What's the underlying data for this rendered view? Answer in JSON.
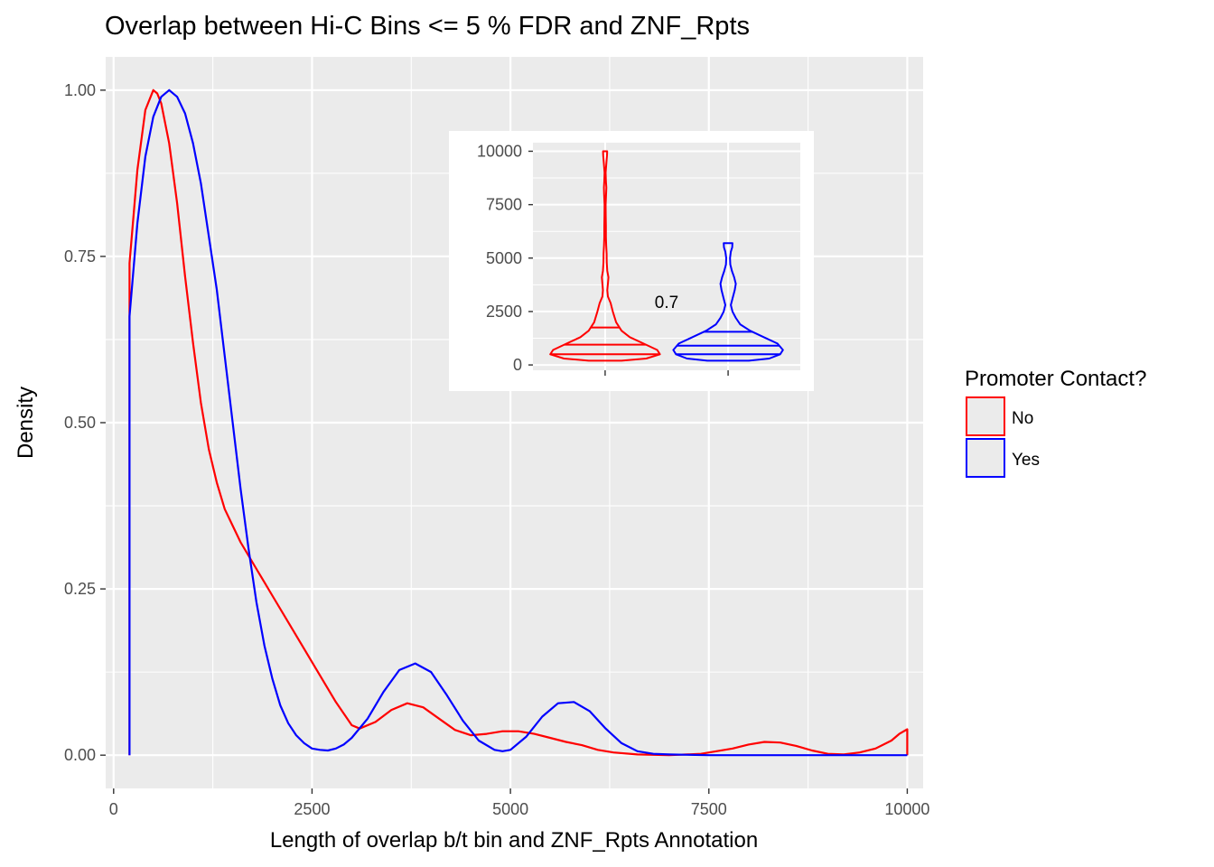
{
  "chart_data": [
    {
      "type": "area",
      "title": "Overlap between Hi-C Bins <= 5 % FDR and ZNF_Rpts",
      "xlabel": "Length of overlap b/t bin and ZNF_Rpts Annotation",
      "ylabel": "Density",
      "xlim": [
        -100,
        10200
      ],
      "ylim": [
        -0.05,
        1.05
      ],
      "xticks": [
        0,
        2500,
        5000,
        7500,
        10000
      ],
      "xtick_labels": [
        "0",
        "2500",
        "5000",
        "7500",
        "10000"
      ],
      "yticks": [
        0,
        0.25,
        0.5,
        0.75,
        1.0
      ],
      "ytick_labels": [
        "0.00",
        "0.25",
        "0.50",
        "0.75",
        "1.00"
      ],
      "grid": true,
      "legend": {
        "title": "Promoter Contact?",
        "position": "right",
        "entries": [
          {
            "label": "No",
            "color": "#ff0000"
          },
          {
            "label": "Yes",
            "color": "#0000ff"
          }
        ]
      },
      "series": [
        {
          "name": "No",
          "color": "#ff0000",
          "x": [
            200,
            200,
            300,
            400,
            500,
            550,
            600,
            700,
            800,
            900,
            1000,
            1100,
            1200,
            1300,
            1400,
            1500,
            1600,
            1700,
            1800,
            1900,
            2000,
            2200,
            2400,
            2600,
            2800,
            3000,
            3100,
            3300,
            3500,
            3700,
            3900,
            4100,
            4300,
            4500,
            4700,
            4900,
            5100,
            5300,
            5500,
            5700,
            5900,
            6100,
            6300,
            6600,
            7000,
            7400,
            7800,
            8000,
            8200,
            8400,
            8600,
            8800,
            9000,
            9200,
            9400,
            9600,
            9800,
            9900,
            10000,
            10000
          ],
          "y": [
            0,
            0.74,
            0.88,
            0.97,
            1.0,
            0.995,
            0.98,
            0.92,
            0.83,
            0.72,
            0.62,
            0.53,
            0.46,
            0.41,
            0.37,
            0.345,
            0.32,
            0.3,
            0.28,
            0.26,
            0.24,
            0.2,
            0.16,
            0.12,
            0.08,
            0.045,
            0.04,
            0.05,
            0.068,
            0.078,
            0.072,
            0.055,
            0.038,
            0.03,
            0.032,
            0.036,
            0.036,
            0.032,
            0.026,
            0.02,
            0.015,
            0.008,
            0.004,
            0.001,
            0.0,
            0.002,
            0.01,
            0.016,
            0.02,
            0.019,
            0.014,
            0.007,
            0.002,
            0.001,
            0.004,
            0.01,
            0.022,
            0.032,
            0.039,
            0
          ]
        },
        {
          "name": "Yes",
          "color": "#0000ff",
          "x": [
            200,
            200,
            300,
            400,
            500,
            600,
            700,
            800,
            900,
            1000,
            1100,
            1200,
            1300,
            1400,
            1500,
            1600,
            1700,
            1800,
            1900,
            2000,
            2100,
            2200,
            2300,
            2400,
            2500,
            2600,
            2700,
            2800,
            2900,
            3000,
            3200,
            3400,
            3600,
            3800,
            4000,
            4200,
            4400,
            4600,
            4800,
            4900,
            5000,
            5200,
            5400,
            5600,
            5800,
            6000,
            6200,
            6400,
            6600,
            6800,
            7000,
            7500,
            8000,
            9000,
            10000,
            10000
          ],
          "y": [
            0,
            0.66,
            0.8,
            0.9,
            0.96,
            0.99,
            1.0,
            0.99,
            0.965,
            0.92,
            0.86,
            0.78,
            0.7,
            0.6,
            0.5,
            0.4,
            0.31,
            0.23,
            0.165,
            0.115,
            0.075,
            0.048,
            0.03,
            0.018,
            0.01,
            0.008,
            0.007,
            0.01,
            0.016,
            0.026,
            0.055,
            0.095,
            0.128,
            0.138,
            0.125,
            0.09,
            0.052,
            0.022,
            0.008,
            0.006,
            0.008,
            0.028,
            0.058,
            0.078,
            0.08,
            0.066,
            0.04,
            0.018,
            0.006,
            0.002,
            0.001,
            0.0,
            0.0,
            0.0,
            0.0,
            0
          ]
        }
      ]
    },
    {
      "type": "violin",
      "ylim": [
        -250,
        10400
      ],
      "yticks": [
        0,
        2500,
        5000,
        7500,
        10000
      ],
      "ytick_labels": [
        "0",
        "2500",
        "5000",
        "7500",
        "10000"
      ],
      "annotation": "0.7",
      "groups": [
        {
          "name": "No",
          "color": "#ff0000",
          "quantiles": [
            500,
            950,
            1750
          ],
          "profile": [
            [
              200,
              0.3
            ],
            [
              300,
              0.75
            ],
            [
              500,
              1.0
            ],
            [
              700,
              0.95
            ],
            [
              1000,
              0.7
            ],
            [
              1300,
              0.45
            ],
            [
              1600,
              0.3
            ],
            [
              2000,
              0.2
            ],
            [
              2500,
              0.14
            ],
            [
              2900,
              0.1
            ],
            [
              3200,
              0.05
            ],
            [
              3500,
              0.04
            ],
            [
              3800,
              0.05
            ],
            [
              4100,
              0.06
            ],
            [
              4400,
              0.04
            ],
            [
              4800,
              0.03
            ],
            [
              5200,
              0.028
            ],
            [
              5600,
              0.02
            ],
            [
              6000,
              0.015
            ],
            [
              6500,
              0.015
            ],
            [
              7000,
              0.012
            ],
            [
              7500,
              0.01
            ],
            [
              8000,
              0.018
            ],
            [
              8300,
              0.022
            ],
            [
              8600,
              0.015
            ],
            [
              9000,
              0.01
            ],
            [
              9500,
              0.025
            ],
            [
              9800,
              0.035
            ],
            [
              10000,
              0.038
            ]
          ]
        },
        {
          "name": "Yes",
          "color": "#0000ff",
          "quantiles": [
            500,
            900,
            1550
          ],
          "profile": [
            [
              200,
              0.38
            ],
            [
              300,
              0.75
            ],
            [
              500,
              0.95
            ],
            [
              700,
              1.0
            ],
            [
              1000,
              0.9
            ],
            [
              1300,
              0.65
            ],
            [
              1600,
              0.4
            ],
            [
              1900,
              0.22
            ],
            [
              2200,
              0.14
            ],
            [
              2500,
              0.08
            ],
            [
              2800,
              0.05
            ],
            [
              3100,
              0.08
            ],
            [
              3500,
              0.12
            ],
            [
              3800,
              0.14
            ],
            [
              4100,
              0.11
            ],
            [
              4400,
              0.07
            ],
            [
              4700,
              0.04
            ],
            [
              5000,
              0.035
            ],
            [
              5300,
              0.05
            ],
            [
              5500,
              0.075
            ],
            [
              5700,
              0.08
            ]
          ]
        }
      ]
    }
  ]
}
